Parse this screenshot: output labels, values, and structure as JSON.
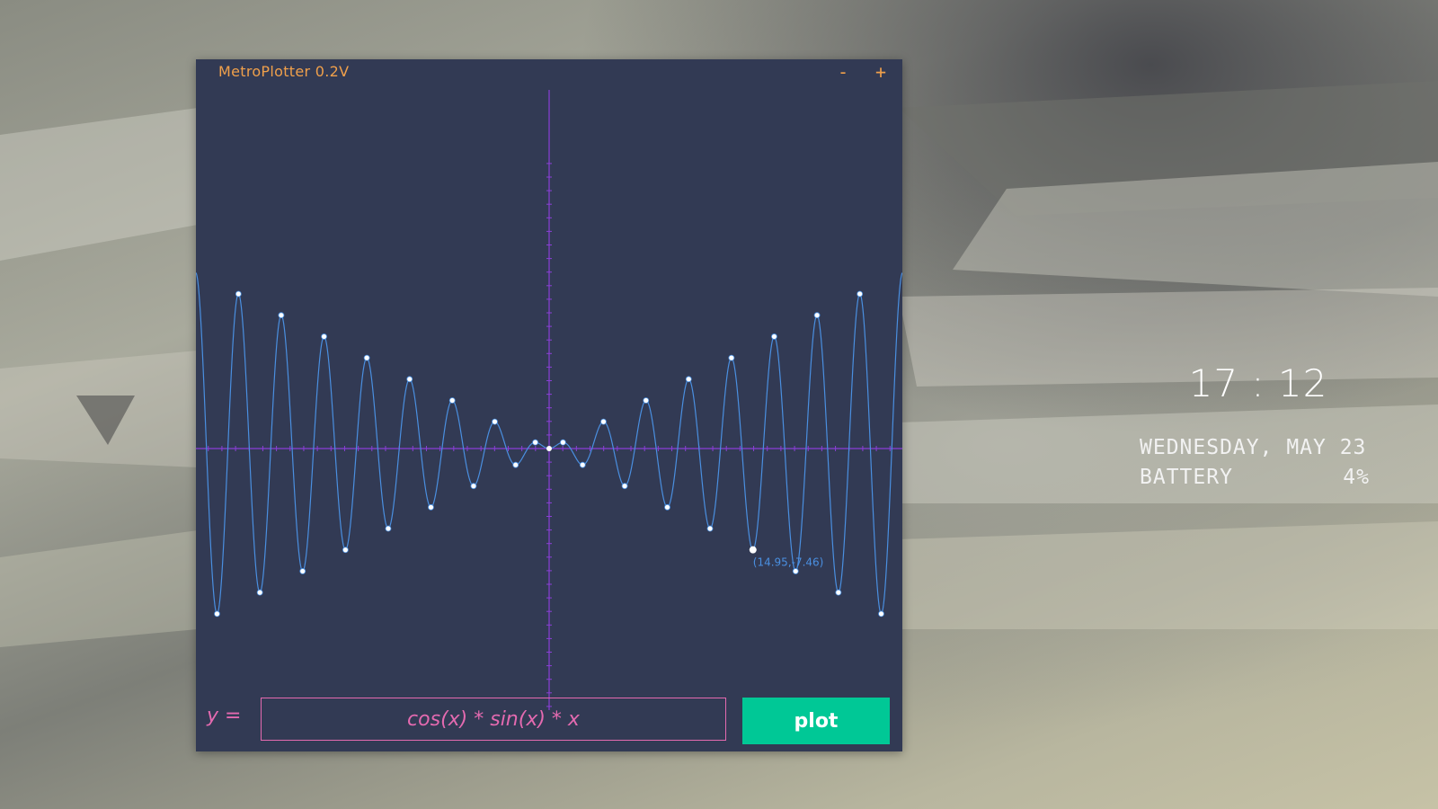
{
  "window": {
    "title": "MetroPlotter 0.2V",
    "minimize_label": "-",
    "maximize_label": "+"
  },
  "formula": {
    "label": "y =",
    "value": "cos(x) * sin(x) * x",
    "plot_button_label": "plot"
  },
  "plot": {
    "function": "cos(x) * sin(x) * x",
    "x_range": [
      -25.9,
      25.9
    ],
    "y_range": [
      -20.1,
      20.1
    ],
    "marked_point": {
      "x": 14.95,
      "y": -7.46,
      "label": "(14.95,-7.46)"
    },
    "colors": {
      "axis": "#8a3fd6",
      "curve": "#4a8fe0",
      "point": "#ffffff",
      "annotation": "#4a8fe0"
    }
  },
  "chart_data": {
    "type": "line",
    "title": "",
    "xlabel": "",
    "ylabel": "",
    "series": [
      {
        "name": "",
        "expression": "cos(x) * sin(x) * x"
      }
    ],
    "xlim": [
      -25.9,
      25.9
    ],
    "ylim": [
      -20.1,
      20.1
    ],
    "grid": false,
    "annotations": [
      {
        "x": 14.95,
        "y": -7.46,
        "text": "(14.95,-7.46)"
      }
    ]
  },
  "clock": {
    "time": "17 : 12",
    "date_label": "WEDNESDAY, MAY 23",
    "battery_label": "BATTERY",
    "battery_value": "4%"
  },
  "colors": {
    "window_bg": "#323a54",
    "title": "#f0a04b",
    "formula": "#e46ab0",
    "button": "#00c896"
  }
}
